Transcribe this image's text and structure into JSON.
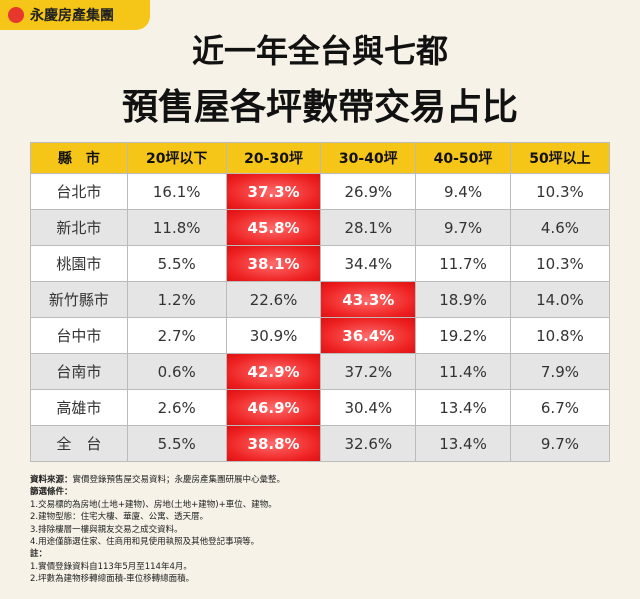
{
  "brand": "永慶房產集團",
  "title": [
    "近一年全台與七都",
    "預售屋各坪數帶交易占比"
  ],
  "table": {
    "header": [
      "縣　市",
      "20坪以下",
      "20-30坪",
      "30-40坪",
      "40-50坪",
      "50坪以上"
    ],
    "rows": [
      [
        "台北市",
        "16.1%",
        "37.3%",
        "26.9%",
        "9.4%",
        "10.3%"
      ],
      [
        "新北市",
        "11.8%",
        "45.8%",
        "28.1%",
        "9.7%",
        "4.6%"
      ],
      [
        "桃園市",
        "5.5%",
        "38.1%",
        "34.4%",
        "11.7%",
        "10.3%"
      ],
      [
        "新竹縣市",
        "1.2%",
        "22.6%",
        "43.3%",
        "18.9%",
        "14.0%"
      ],
      [
        "台中市",
        "2.7%",
        "30.9%",
        "36.4%",
        "19.2%",
        "10.8%"
      ],
      [
        "台南市",
        "0.6%",
        "42.9%",
        "37.2%",
        "11.4%",
        "7.9%"
      ],
      [
        "高雄市",
        "2.6%",
        "46.9%",
        "30.4%",
        "13.4%",
        "6.7%"
      ],
      [
        "全　台",
        "5.5%",
        "38.8%",
        "32.6%",
        "13.4%",
        "9.7%"
      ]
    ]
  },
  "notes": {
    "source_label": "資料來源：",
    "source": "實價登錄預售屋交易資料；永慶房產集團研展中心彙整。",
    "filter_label": "篩選條件：",
    "filters": [
      "1.交易標的為房地(土地+建物)、房地(土地+建物)+車位、建物。",
      "2.建物型態：住宅大樓、華廈、公寓、透天厝。",
      "3.排除樓層一樓與親友交易之成交資料。",
      "4.用途僅篩選住家、住商用和見使用執照及其他登記事項等。"
    ],
    "remark_label": "註：",
    "remarks": [
      "1.實價登錄資料自113年5月至114年4月。",
      "2.坪數為建物移轉總面積-車位移轉總面積。"
    ]
  }
}
